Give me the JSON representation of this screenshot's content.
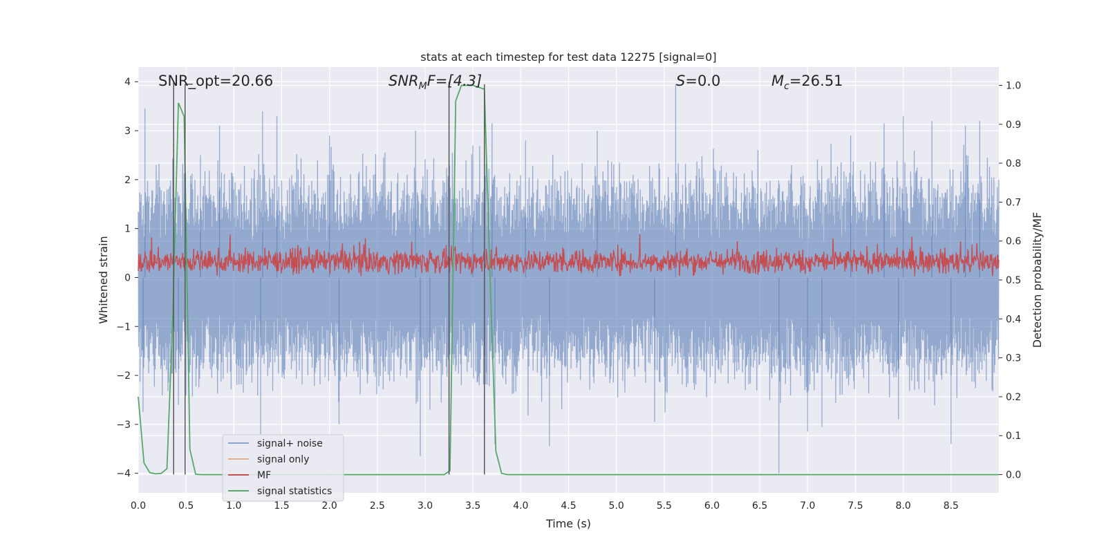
{
  "chart_data": {
    "type": "line",
    "title": "stats at each timestep for test data 12275 [signal=0]",
    "xlabel": "Time (s)",
    "ylabel": "Whitened strain",
    "ylabel_right": "Detection probability/MF",
    "xlim": [
      0.0,
      9.0
    ],
    "ylim": [
      -4.4,
      4.3
    ],
    "ylim_right": [
      -0.047,
      1.047
    ],
    "x_ticks": [
      "0.0",
      "0.5",
      "1.0",
      "1.5",
      "2.0",
      "2.5",
      "3.0",
      "3.5",
      "4.0",
      "4.5",
      "5.0",
      "5.5",
      "6.0",
      "6.5",
      "7.0",
      "7.5",
      "8.0",
      "8.5"
    ],
    "y_ticks": [
      "−4",
      "−3",
      "−2",
      "−1",
      "0",
      "1",
      "2",
      "3",
      "4"
    ],
    "y_ticks_right": [
      "0.0",
      "0.1",
      "0.2",
      "0.3",
      "0.4",
      "0.5",
      "0.6",
      "0.7",
      "0.8",
      "0.9",
      "1.0"
    ],
    "grid": true,
    "legend_position": "lower-left",
    "annotations": {
      "snr_opt": "SNR_opt=20.66",
      "snr_mf_base": "SNR",
      "snr_mf_sub": "M",
      "snr_mf_rest": "F=[4.3]",
      "s_italic": "S",
      "s_rest": "=0.0",
      "mc_base": "M",
      "mc_sub": "c",
      "mc_rest": "=26.51"
    },
    "colors": {
      "background": "#eaeaf2",
      "grid": "#ffffff",
      "noise": "#4c72b0",
      "signal_only": "#dd8452",
      "mf": "#c44e52",
      "statistics": "#55a868",
      "vlines": "#555555"
    },
    "series": [
      {
        "name": "signal+ noise",
        "axis": "left",
        "description_values": {
          "typical_range": [
            -1.6,
            1.6
          ],
          "peak_max": 3.95,
          "peak_min": -4.0
        },
        "spikes_up": [
          [
            0.07,
            3.45
          ],
          [
            0.65,
            2.5
          ],
          [
            0.85,
            3.1
          ],
          [
            1.3,
            3.4
          ],
          [
            1.45,
            3.3
          ],
          [
            2.0,
            2.9
          ],
          [
            2.9,
            3.0
          ],
          [
            3.5,
            2.7
          ],
          [
            3.7,
            3.15
          ],
          [
            4.05,
            2.8
          ],
          [
            4.8,
            3.0
          ],
          [
            5.62,
            3.95
          ],
          [
            7.45,
            2.9
          ],
          [
            7.8,
            3.15
          ],
          [
            8.0,
            3.3
          ],
          [
            8.3,
            3.2
          ],
          [
            8.65,
            3.1
          ],
          [
            8.8,
            3.2
          ]
        ],
        "spikes_down": [
          [
            0.05,
            -2.75
          ],
          [
            0.42,
            -2.6
          ],
          [
            1.28,
            -3.2
          ],
          [
            2.1,
            -3.0
          ],
          [
            2.95,
            -3.65
          ],
          [
            3.05,
            -2.7
          ],
          [
            3.73,
            -3.4
          ],
          [
            4.3,
            -3.45
          ],
          [
            5.4,
            -2.95
          ],
          [
            6.7,
            -4.0
          ],
          [
            7.0,
            -3.15
          ],
          [
            7.15,
            -3.05
          ],
          [
            7.95,
            -2.9
          ],
          [
            8.5,
            -3.4
          ]
        ]
      },
      {
        "name": "signal only",
        "axis": "left",
        "values": []
      },
      {
        "name": "MF",
        "axis": "left",
        "description_values": {
          "typical_range": [
            0.05,
            0.65
          ],
          "peak_max": 0.9
        }
      },
      {
        "name": "signal statistics",
        "axis": "right",
        "x": [
          0.0,
          0.06,
          0.12,
          0.18,
          0.24,
          0.3,
          0.36,
          0.42,
          0.48,
          0.54,
          0.6,
          0.66,
          1.0,
          2.0,
          3.0,
          3.2,
          3.26,
          3.32,
          3.38,
          3.44,
          3.5,
          3.56,
          3.62,
          3.68,
          3.74,
          3.8,
          3.86,
          4.0,
          5.0,
          6.0,
          7.0,
          8.0,
          9.0
        ],
        "values": [
          0.2,
          0.03,
          0.005,
          0.002,
          0.003,
          0.015,
          0.4,
          0.955,
          0.92,
          0.065,
          0.001,
          0.0,
          0.0,
          0.0,
          0.0,
          0.0,
          0.01,
          0.96,
          1.0,
          1.0,
          1.0,
          0.995,
          0.99,
          0.5,
          0.06,
          0.003,
          0.0,
          0.0,
          0.0,
          0.0,
          0.0,
          0.0,
          0.0
        ]
      }
    ],
    "vertical_lines": [
      0.37,
      0.49,
      3.25,
      3.62
    ]
  }
}
